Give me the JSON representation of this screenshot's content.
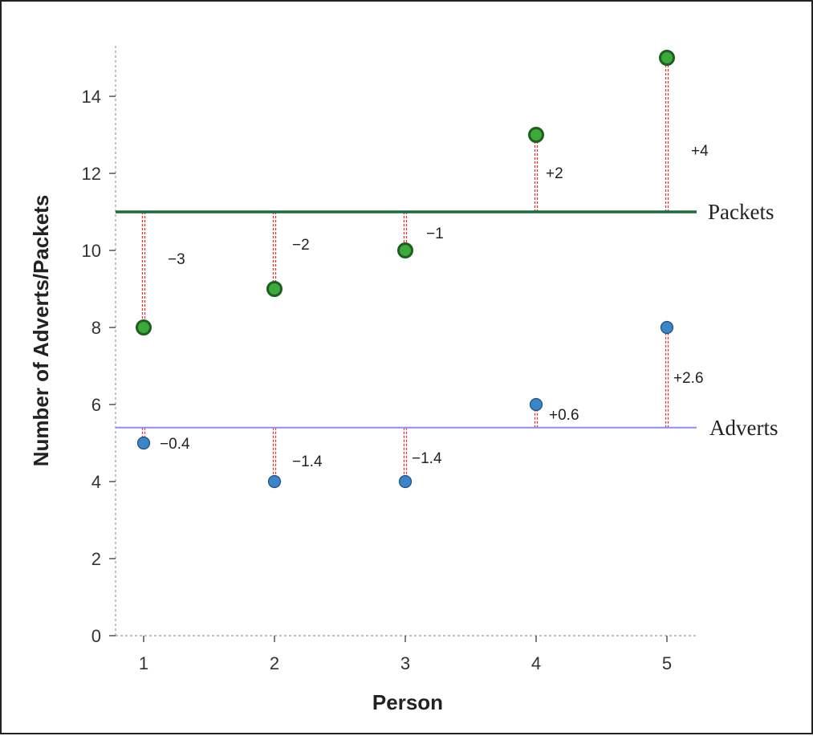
{
  "chart_data": {
    "type": "scatter",
    "title": "",
    "xlabel": "Person",
    "ylabel": "Number of Adverts/Packets",
    "xlim": [
      0.8,
      5.2
    ],
    "ylim": [
      0,
      15.3
    ],
    "x_ticks": [
      1,
      2,
      3,
      4,
      5
    ],
    "y_ticks": [
      0,
      2,
      4,
      6,
      8,
      10,
      12,
      14
    ],
    "x_tick_labels": [
      "1",
      "2",
      "3",
      "4",
      "5"
    ],
    "y_tick_labels": [
      "0",
      "2",
      "4",
      "6",
      "8",
      "10",
      "12",
      "14"
    ],
    "grid": false,
    "x": [
      1,
      2,
      3,
      4,
      5
    ],
    "series": [
      {
        "name": "Packets",
        "values": [
          8,
          9,
          10,
          13,
          15
        ],
        "mean": 11,
        "deviation_labels": [
          "−3",
          "−2",
          "−1",
          "+2",
          "+4"
        ],
        "point_color": "#3aaa3a",
        "point_edge": "#1e5e1e",
        "line_color": "#1d6b3a"
      },
      {
        "name": "Adverts",
        "values": [
          5,
          4,
          4,
          6,
          8
        ],
        "mean": 5.4,
        "deviation_labels": [
          "−0.4",
          "−1.4",
          "−1.4",
          "+0.6",
          "+2.6"
        ],
        "point_color": "#3a86c8",
        "point_edge": "#1f4f7a",
        "line_color": "#8f8fe8"
      }
    ],
    "deviation_line_color": "#d8383a"
  }
}
